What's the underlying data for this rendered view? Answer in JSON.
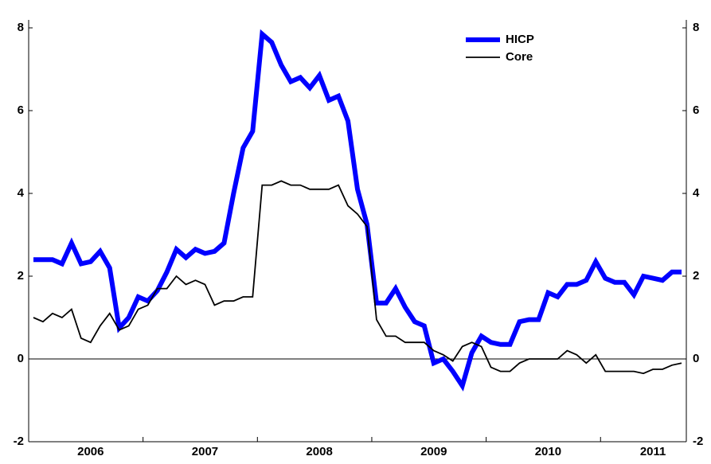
{
  "chart_data": {
    "type": "line",
    "categories": [
      null,
      null,
      null,
      null,
      null,
      null,
      "2006",
      null,
      null,
      null,
      null,
      null,
      null,
      null,
      null,
      null,
      null,
      null,
      "2007",
      null,
      null,
      null,
      null,
      null,
      null,
      null,
      null,
      null,
      null,
      null,
      "2008",
      null,
      null,
      null,
      null,
      null,
      null,
      null,
      null,
      null,
      null,
      null,
      "2009",
      null,
      null,
      null,
      null,
      null,
      null,
      null,
      null,
      null,
      null,
      null,
      "2010",
      null,
      null,
      null,
      null,
      null,
      null,
      null,
      null,
      null,
      null,
      "2011",
      null,
      null,
      null
    ],
    "series": [
      {
        "name": "HICP",
        "color": "#0000ff",
        "values": [
          2.4,
          2.4,
          2.4,
          2.3,
          2.8,
          2.3,
          2.35,
          2.6,
          2.2,
          0.75,
          1.0,
          1.5,
          1.4,
          1.65,
          2.1,
          2.65,
          2.45,
          2.65,
          2.55,
          2.6,
          2.8,
          4.0,
          5.1,
          5.5,
          7.85,
          7.65,
          7.1,
          6.7,
          6.8,
          6.55,
          6.85,
          6.25,
          6.35,
          5.75,
          4.1,
          3.25,
          1.35,
          1.35,
          1.7,
          1.25,
          0.9,
          0.8,
          -0.1,
          0.0,
          -0.3,
          -0.65,
          0.15,
          0.55,
          0.4,
          0.35,
          0.35,
          0.9,
          0.95,
          0.95,
          1.6,
          1.5,
          1.8,
          1.8,
          1.9,
          2.35,
          1.95,
          1.85,
          1.85,
          1.55,
          2.0,
          1.95,
          1.9,
          2.1,
          2.1
        ]
      },
      {
        "name": "Core",
        "color": "#000000",
        "values": [
          1.0,
          0.9,
          1.1,
          1.0,
          1.2,
          0.5,
          0.4,
          0.8,
          1.1,
          0.7,
          0.8,
          1.2,
          1.3,
          1.7,
          1.7,
          2.0,
          1.8,
          1.9,
          1.8,
          1.3,
          1.4,
          1.4,
          1.5,
          1.5,
          4.2,
          4.2,
          4.3,
          4.2,
          4.2,
          4.1,
          4.1,
          4.1,
          4.2,
          3.7,
          3.5,
          3.2,
          0.95,
          0.55,
          0.55,
          0.4,
          0.4,
          0.4,
          0.2,
          0.1,
          -0.05,
          0.3,
          0.4,
          0.3,
          -0.2,
          -0.3,
          -0.3,
          -0.1,
          0.0,
          0.0,
          0.0,
          0.0,
          0.2,
          0.1,
          -0.1,
          0.1,
          -0.3,
          -0.3,
          -0.3,
          -0.3,
          -0.35,
          -0.25,
          -0.25,
          -0.15,
          -0.1
        ]
      }
    ],
    "ylim": [
      -2,
      8
    ],
    "yticks": [
      -2,
      0,
      2,
      4,
      6,
      8
    ],
    "y2lim": [
      -2,
      8
    ],
    "y2ticks": [
      -2,
      0,
      2,
      4,
      6,
      8
    ],
    "grid": false,
    "legend": "upper right"
  }
}
